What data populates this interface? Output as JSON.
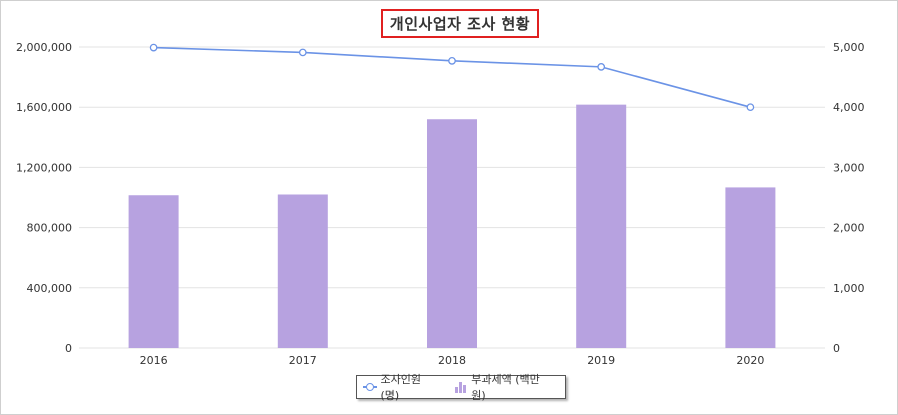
{
  "chart_data": {
    "type": "bar+line",
    "title": "개인사업자 조사 현황",
    "categories": [
      "2016",
      "2017",
      "2018",
      "2019",
      "2020"
    ],
    "series": [
      {
        "name": "부과세액 (백만원)",
        "type": "bar",
        "axis": "left",
        "color": "#b7a2e0",
        "values": [
          1015000,
          1020000,
          1520000,
          1617000,
          1067000
        ]
      },
      {
        "name": "조사인원 (명)",
        "type": "line",
        "axis": "right",
        "color": "#6b93e6",
        "values": [
          4990,
          4910,
          4770,
          4670,
          4000
        ]
      }
    ],
    "y_left": {
      "range": [
        0,
        2000000
      ],
      "ticks": [
        "0",
        "400,000",
        "800,000",
        "1,200,000",
        "1,600,000",
        "2,000,000"
      ]
    },
    "y_right": {
      "range": [
        0,
        5000
      ],
      "ticks": [
        "0",
        "1,000",
        "2,000",
        "3,000",
        "4,000",
        "5,000"
      ]
    },
    "grid": true,
    "legend_position": "bottom"
  }
}
